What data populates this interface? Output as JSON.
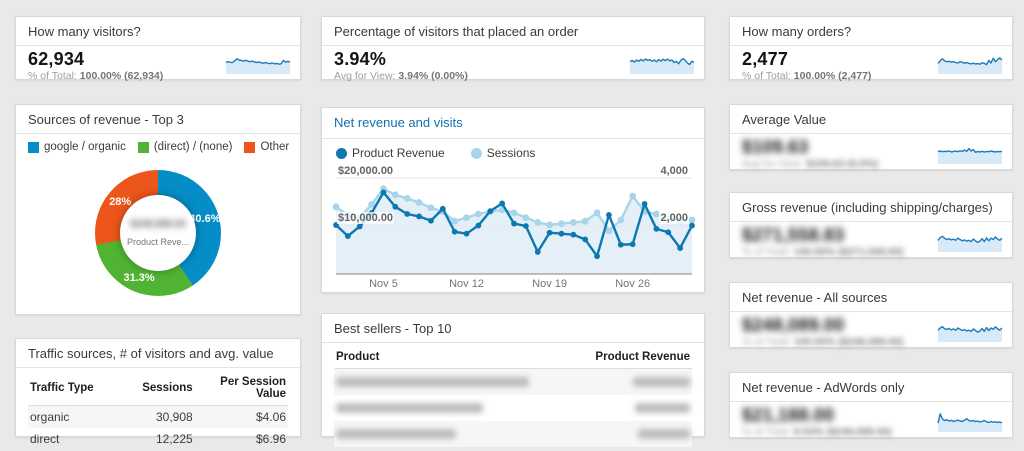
{
  "colors": {
    "series_dark": "#0d78af",
    "series_light": "#a8d4ec",
    "area_fill": "#ddebf6",
    "donut_blue": "#058dc7",
    "donut_green": "#50b432",
    "donut_orange": "#ed561b",
    "spark_line": "#1c7bb8",
    "spark_fill": "#d8e9f7",
    "link_blue": "#1470af"
  },
  "stat_cards": [
    {
      "id": "visitors",
      "title": "How many visitors?",
      "value": "62,934",
      "subtext_label": "% of Total:",
      "subtext_value": "100.00% (62,934)",
      "redacted": false,
      "spark": [
        4.6,
        4.9,
        4.6,
        4.5,
        5.4,
        6.3,
        5.7,
        5.5,
        5.2,
        5.6,
        5.1,
        4.9,
        5.2,
        4.7,
        4.5,
        4.8,
        4.4,
        4.2,
        4.5,
        4.1,
        4.0,
        4.3,
        3.9,
        4.1,
        3.7,
        3.9,
        5.5,
        4.7,
        5.1,
        4.7
      ]
    },
    {
      "id": "pct_order",
      "title": "Percentage of visitors that placed an order",
      "value": "3.94%",
      "subtext_label": "Avg for View:",
      "subtext_value": "3.94% (0.00%)",
      "redacted": false,
      "spark": [
        4.9,
        5.5,
        4.7,
        5.7,
        5.1,
        6.0,
        5.3,
        6.2,
        5.5,
        5.9,
        5.1,
        5.7,
        4.9,
        5.9,
        5.2,
        6.1,
        5.4,
        6.2,
        5.3,
        5.7,
        4.5,
        5.1,
        3.9,
        5.5,
        6.4,
        5.6,
        4.3,
        3.5,
        5.1,
        4.7
      ]
    },
    {
      "id": "orders",
      "title": "How many orders?",
      "value": "2,477",
      "subtext_label": "% of Total:",
      "subtext_value": "100.00% (2,477)",
      "redacted": false,
      "spark": [
        4.1,
        5.3,
        6.3,
        5.3,
        4.9,
        5.1,
        4.7,
        4.9,
        4.5,
        4.3,
        4.9,
        4.6,
        4.2,
        4.5,
        4.1,
        3.9,
        4.2,
        3.8,
        4.0,
        3.7,
        4.4,
        4.1,
        3.5,
        5.5,
        4.3,
        6.5,
        4.9,
        5.9,
        6.7,
        5.7
      ]
    },
    {
      "id": "avg_value",
      "title": "Average Value",
      "value": "$109.63",
      "subtext_label": "Avg for View:",
      "subtext_value": "$109.63 (0.0%)",
      "redacted": true,
      "spark": [
        5.0,
        5.2,
        4.9,
        5.1,
        5.0,
        5.3,
        4.8,
        5.0,
        5.2,
        4.9,
        5.4,
        5.0,
        5.7,
        5.1,
        6.4,
        5.3,
        5.9,
        4.6,
        5.0,
        4.8,
        5.1,
        4.7,
        5.0,
        4.9,
        5.2,
        5.0,
        4.8,
        5.0,
        4.9,
        5.1
      ]
    },
    {
      "id": "gross_revenue",
      "title": "Gross revenue (including shipping/charges)",
      "value": "$271,558.83",
      "subtext_label": "% of Total:",
      "subtext_value": "100.00% ($271,558.83)",
      "redacted": true,
      "spark": [
        4.5,
        5.9,
        6.5,
        5.5,
        5.0,
        5.4,
        4.8,
        5.2,
        4.6,
        5.6,
        5.0,
        4.4,
        4.8,
        4.2,
        4.6,
        4.0,
        5.2,
        4.4,
        3.6,
        4.2,
        5.4,
        4.0,
        5.8,
        4.4,
        5.6,
        5.0,
        6.2,
        5.2,
        4.6,
        5.6
      ]
    },
    {
      "id": "net_revenue_all",
      "title": "Net revenue - All sources",
      "value": "$248,089.00",
      "subtext_label": "% of Total:",
      "subtext_value": "100.00% ($248,089.00)",
      "redacted": true,
      "spark": [
        4.6,
        5.7,
        6.4,
        5.4,
        5.0,
        5.5,
        4.8,
        5.3,
        4.6,
        5.7,
        5.1,
        4.5,
        4.9,
        4.3,
        4.7,
        4.1,
        5.3,
        4.5,
        3.7,
        4.3,
        5.5,
        4.1,
        5.9,
        4.5,
        5.7,
        5.1,
        6.3,
        5.3,
        4.7,
        5.7
      ]
    },
    {
      "id": "net_revenue_adwords",
      "title": "Net revenue - AdWords only",
      "value": "$21,188.00",
      "subtext_label": "% of Total:",
      "subtext_value": "8.54% ($248,089.00)",
      "redacted": true,
      "spark": [
        3.3,
        7.7,
        5.3,
        4.5,
        4.9,
        4.3,
        4.6,
        4.1,
        4.4,
        4.7,
        4.3,
        4.1,
        4.6,
        5.4,
        4.5,
        4.2,
        4.5,
        4.0,
        4.3,
        3.8,
        4.1,
        4.5,
        3.9,
        3.6,
        4.0,
        3.7,
        3.9,
        3.6,
        3.8,
        3.4
      ]
    }
  ],
  "donut_card": {
    "title": "Sources of revenue - Top 3",
    "center_value": "$248,089.00",
    "center_label": "Product Reve..."
  },
  "timeline_card": {
    "title": "Net revenue and visits"
  },
  "traffic_card": {
    "title": "Traffic sources, # of visitors and avg. value",
    "columns": [
      "Traffic Type",
      "Sessions",
      "Per Session Value"
    ],
    "rows": [
      [
        "organic",
        "30,908",
        "$4.06"
      ],
      [
        "direct",
        "12,225",
        "$6.96"
      ]
    ]
  },
  "bestsellers_card": {
    "title": "Best sellers - Top 10",
    "columns": [
      "Product",
      "Product Revenue"
    ],
    "rows_redacted": [
      {
        "product_bar_w": 193,
        "revenue_bar_w": 57
      },
      {
        "product_bar_w": 147,
        "revenue_bar_w": 55
      },
      {
        "product_bar_w": 120,
        "revenue_bar_w": 52
      }
    ]
  },
  "chart_data": [
    {
      "type": "pie",
      "donut": true,
      "title": "Sources of revenue - Top 3",
      "labels": [
        "google / organic",
        "(direct) / (none)",
        "Other"
      ],
      "values": [
        40.6,
        31.3,
        28.0
      ],
      "unit": "%",
      "slice_labels": [
        "40.6%",
        "31.3%",
        "28%"
      ],
      "colors": [
        "#058dc7",
        "#50b432",
        "#ed561b"
      ],
      "legend_position": "top",
      "center_label": "Product Reve..."
    },
    {
      "type": "line",
      "title": "Net revenue and visits",
      "x_count": 31,
      "x_tick_indices": [
        4,
        11,
        18,
        25
      ],
      "x_tick_labels": [
        "Nov 5",
        "Nov 12",
        "Nov 19",
        "Nov 26"
      ],
      "y_left": {
        "min": 0,
        "max": 20000,
        "gridlines": [
          10000,
          20000
        ],
        "labels": [
          "$10,000.00",
          "$20,000.00"
        ]
      },
      "y_right": {
        "min": 0,
        "max": 4000,
        "gridlines": [
          2000,
          4000
        ],
        "labels": [
          "2,000",
          "4,000"
        ]
      },
      "grid": true,
      "legend_position": "top",
      "series": [
        {
          "name": "Product Revenue",
          "axis": "left",
          "color": "#0d78af",
          "values": [
            10200,
            7900,
            9900,
            12700,
            17000,
            14000,
            12500,
            12000,
            11100,
            13600,
            8800,
            8400,
            10100,
            13100,
            14700,
            10500,
            10000,
            4600,
            8600,
            8400,
            8200,
            7200,
            3700,
            12300,
            6100,
            6200,
            14600,
            9400,
            8700,
            5400,
            10100
          ]
        },
        {
          "name": "Sessions",
          "axis": "right",
          "color": "#a8d4ec",
          "area": true,
          "values": [
            2800,
            2450,
            2350,
            2900,
            3550,
            3300,
            3150,
            2980,
            2760,
            2600,
            2200,
            2350,
            2500,
            2600,
            2680,
            2550,
            2350,
            2150,
            2050,
            2100,
            2150,
            2200,
            2550,
            1800,
            2250,
            3250,
            2600,
            2500,
            2300,
            2200,
            2250
          ]
        }
      ]
    }
  ]
}
